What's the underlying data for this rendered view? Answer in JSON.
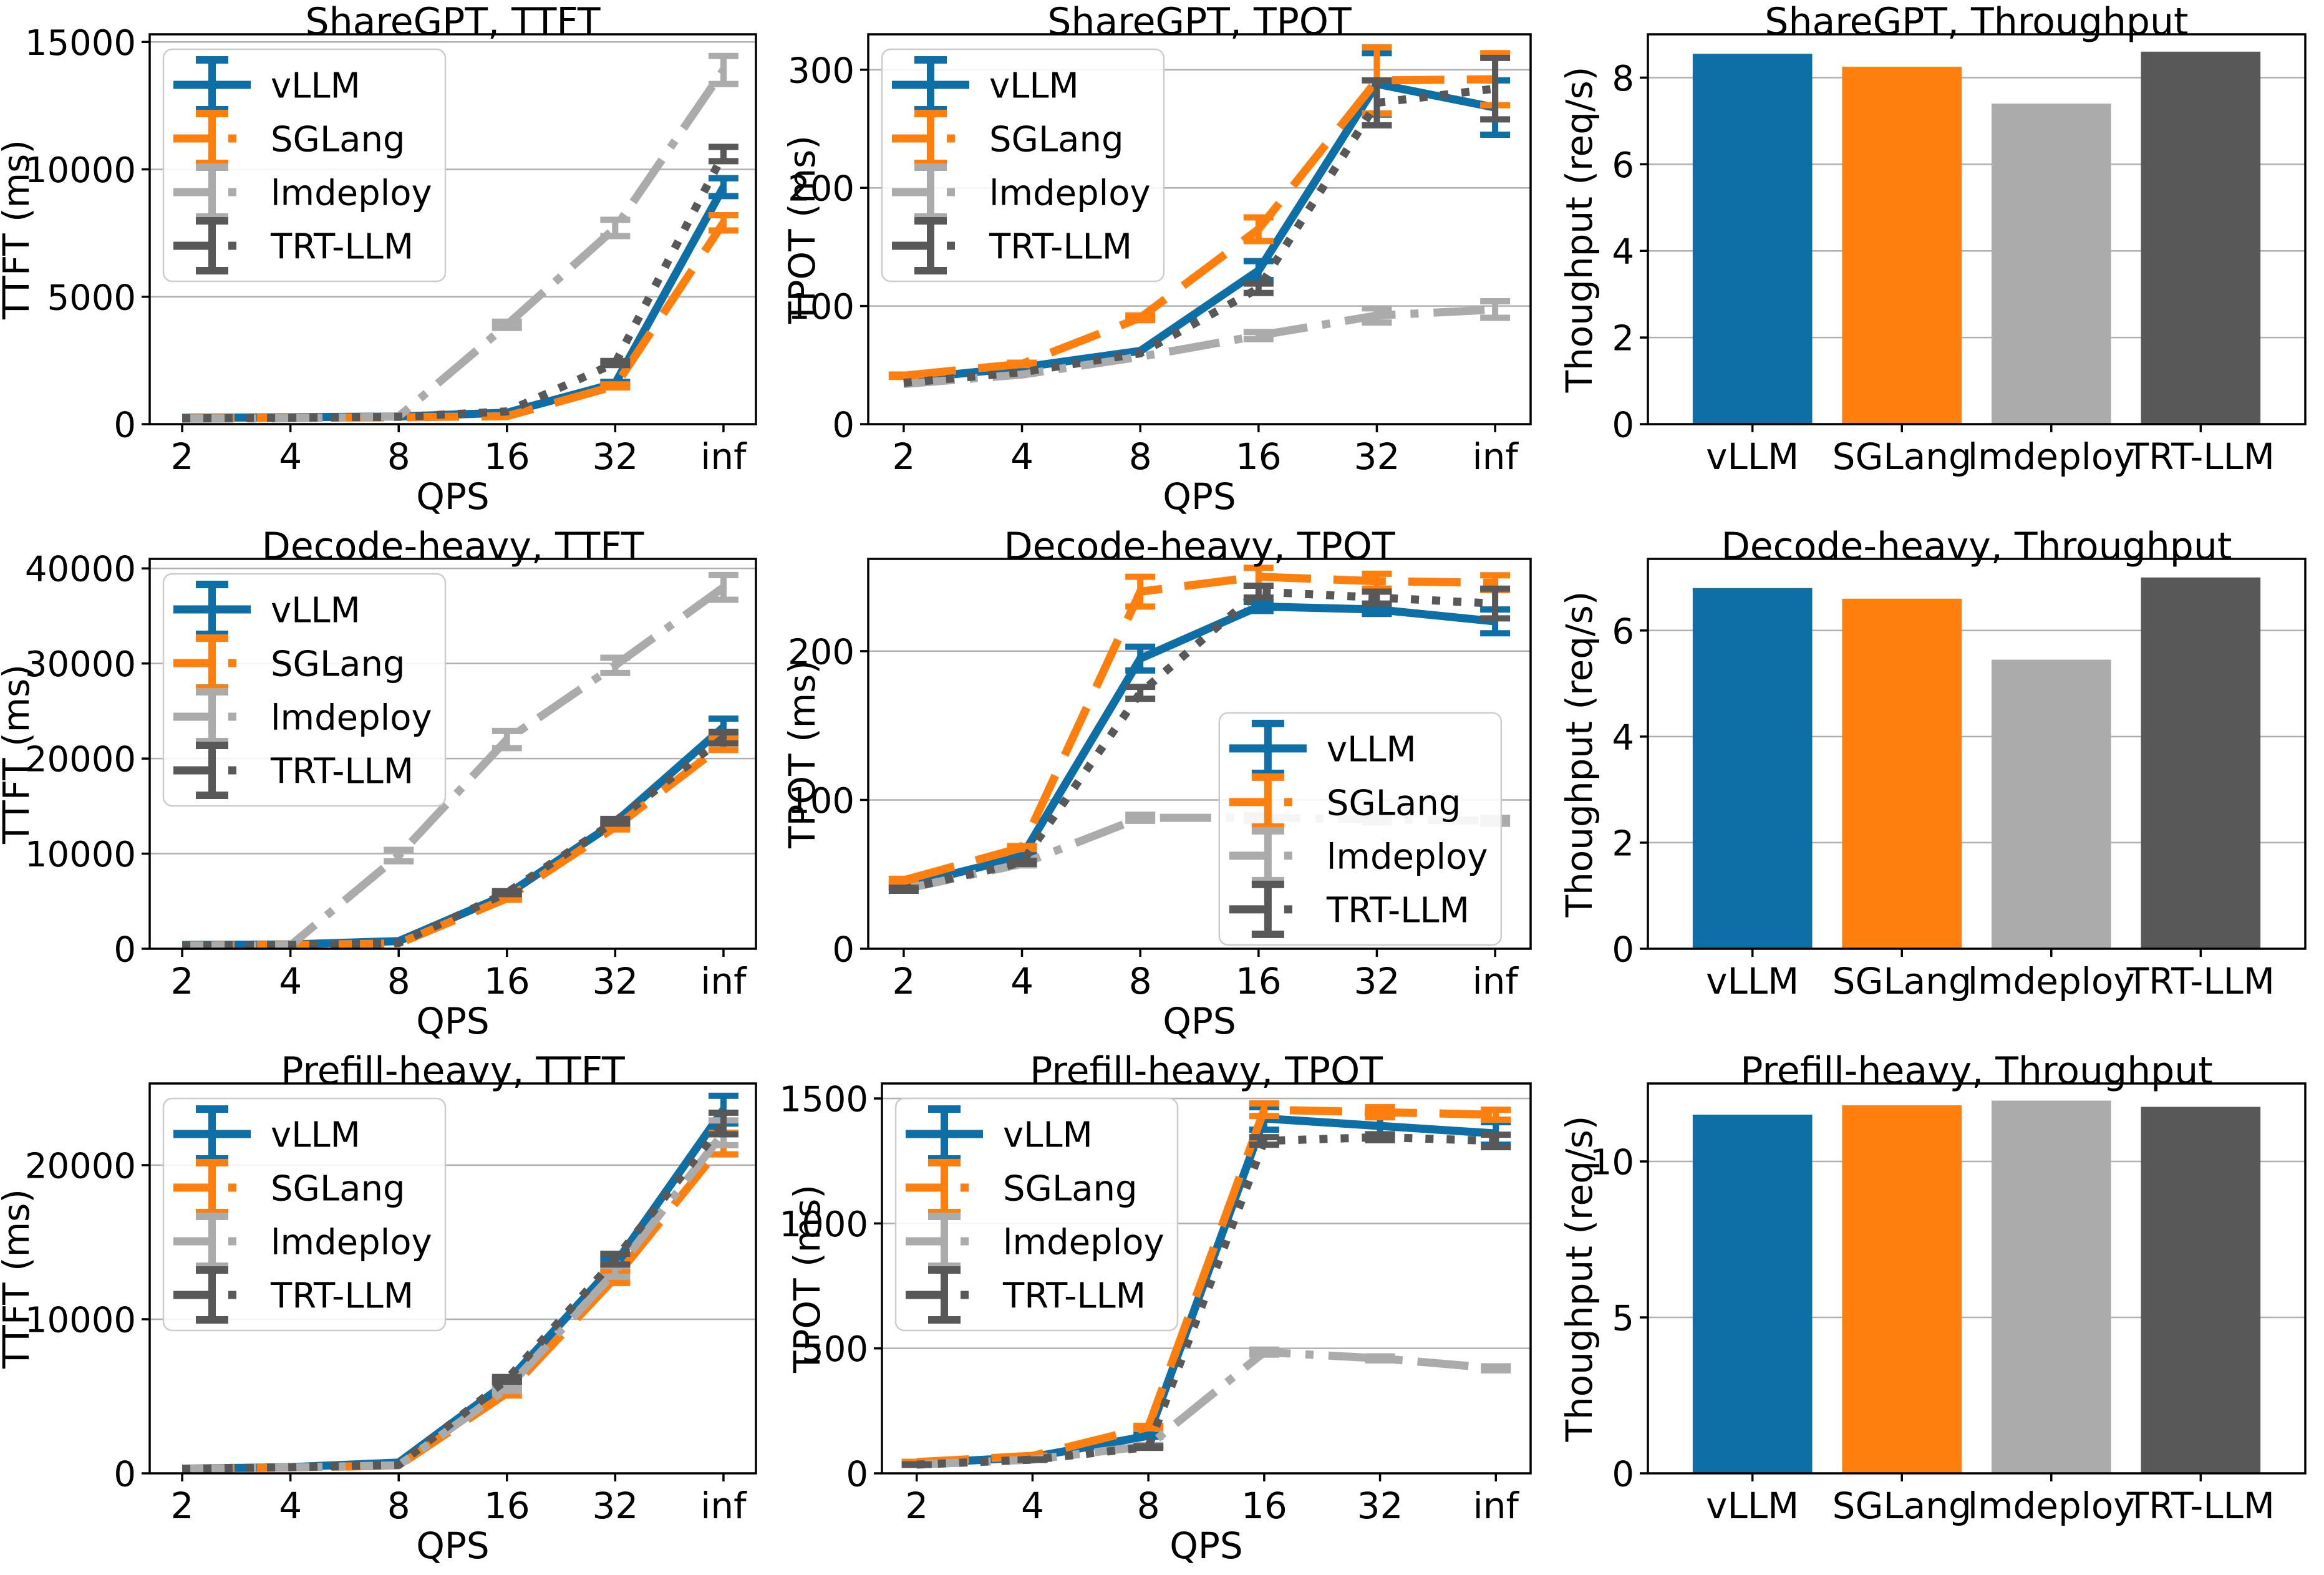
{
  "figure": {
    "background": "#ffffff",
    "frameworks": [
      "vLLM",
      "SGLang",
      "lmdeploy",
      "TRT-LLM"
    ],
    "colors": {
      "vLLM": "#0d6fa6",
      "SGLang": "#ff7f0e",
      "lmdeploy": "#ababab",
      "TRT-LLM": "#585858"
    },
    "linestyles": {
      "vLLM": "solid",
      "SGLang": "dashed",
      "lmdeploy": "dashdot",
      "TRT-LLM": "dotted"
    },
    "grid_color": "#b0b0b0",
    "x_axis_label": "QPS"
  },
  "chart_data": [
    {
      "type": "line",
      "title": "ShareGPT, TTFT",
      "xlabel": "QPS",
      "ylabel": "TTFT (ms)",
      "x_categories": [
        "2",
        "4",
        "8",
        "16",
        "32",
        "inf"
      ],
      "yticks": [
        0,
        5000,
        10000,
        15000
      ],
      "ylim": [
        0,
        15300
      ],
      "grid": true,
      "legend_pos": "upper-left",
      "series": [
        {
          "name": "vLLM",
          "values": [
            250,
            270,
            300,
            450,
            1600,
            9300
          ],
          "err": [
            0,
            0,
            0,
            0,
            60,
            350
          ]
        },
        {
          "name": "SGLang",
          "values": [
            230,
            250,
            270,
            310,
            1500,
            7900
          ],
          "err": [
            0,
            0,
            0,
            0,
            60,
            300
          ]
        },
        {
          "name": "lmdeploy",
          "values": [
            210,
            230,
            300,
            3900,
            7700,
            13900
          ],
          "err": [
            0,
            0,
            0,
            120,
            320,
            550
          ]
        },
        {
          "name": "TRT-LLM",
          "values": [
            230,
            250,
            290,
            500,
            2400,
            10600
          ],
          "err": [
            0,
            0,
            0,
            0,
            80,
            280
          ]
        }
      ]
    },
    {
      "type": "line",
      "title": "ShareGPT, TPOT",
      "xlabel": "QPS",
      "ylabel": "TPOT (ms)",
      "x_categories": [
        "2",
        "4",
        "8",
        "16",
        "32",
        "inf"
      ],
      "yticks": [
        0,
        100,
        200,
        300
      ],
      "ylim": [
        0,
        330
      ],
      "grid": true,
      "legend_pos": "upper-left",
      "series": [
        {
          "name": "vLLM",
          "values": [
            38,
            48,
            62,
            130,
            288,
            268
          ],
          "err": [
            0,
            0,
            0,
            8,
            26,
            23
          ]
        },
        {
          "name": "SGLang",
          "values": [
            41,
            51,
            90,
            165,
            291,
            292
          ],
          "err": [
            1,
            1,
            2,
            10,
            28,
            22
          ]
        },
        {
          "name": "lmdeploy",
          "values": [
            34,
            42,
            57,
            75,
            92,
            97
          ],
          "err": [
            0,
            0,
            0,
            3,
            6,
            7
          ]
        },
        {
          "name": "TRT-LLM",
          "values": [
            35,
            44,
            60,
            115,
            272,
            284
          ],
          "err": [
            0,
            0,
            0,
            4,
            19,
            26
          ]
        }
      ]
    },
    {
      "type": "bar",
      "title": "ShareGPT, Throughput",
      "xlabel": "",
      "ylabel": "Thoughput (req/s)",
      "categories": [
        "vLLM",
        "SGLang",
        "lmdeploy",
        "TRT-LLM"
      ],
      "values": [
        8.55,
        8.25,
        7.4,
        8.6
      ],
      "yticks": [
        0,
        2,
        4,
        6,
        8
      ],
      "ylim": [
        0,
        9.0
      ],
      "grid": true
    },
    {
      "type": "line",
      "title": "Decode-heavy, TTFT",
      "xlabel": "QPS",
      "ylabel": "TTFT (ms)",
      "x_categories": [
        "2",
        "4",
        "8",
        "16",
        "32",
        "inf"
      ],
      "yticks": [
        0,
        10000,
        20000,
        30000,
        40000
      ],
      "ylim": [
        0,
        41000
      ],
      "grid": true,
      "legend_pos": "upper-left",
      "series": [
        {
          "name": "vLLM",
          "values": [
            400,
            450,
            800,
            5700,
            13300,
            23300
          ],
          "err": [
            0,
            0,
            0,
            150,
            250,
            900
          ]
        },
        {
          "name": "SGLang",
          "values": [
            350,
            400,
            550,
            5300,
            12800,
            21500
          ],
          "err": [
            0,
            0,
            0,
            150,
            250,
            600
          ]
        },
        {
          "name": "lmdeploy",
          "values": [
            300,
            350,
            9800,
            22000,
            29800,
            38000
          ],
          "err": [
            0,
            0,
            600,
            900,
            800,
            1300
          ]
        },
        {
          "name": "TRT-LLM",
          "values": [
            350,
            400,
            600,
            5900,
            13400,
            22200
          ],
          "err": [
            0,
            0,
            0,
            150,
            250,
            600
          ]
        }
      ]
    },
    {
      "type": "line",
      "title": "Decode-heavy, TPOT",
      "xlabel": "QPS",
      "ylabel": "TPOT (ms)",
      "x_categories": [
        "2",
        "4",
        "8",
        "16",
        "32",
        "inf"
      ],
      "yticks": [
        0,
        100,
        200
      ],
      "ylim": [
        0,
        262
      ],
      "grid": true,
      "legend_pos": "center-right",
      "series": [
        {
          "name": "vLLM",
          "values": [
            42,
            62,
            195,
            230,
            228,
            220
          ],
          "err": [
            1,
            1,
            8,
            3,
            3,
            8
          ]
        },
        {
          "name": "SGLang",
          "values": [
            46,
            68,
            240,
            250,
            247,
            246
          ],
          "err": [
            1,
            1,
            10,
            6,
            5,
            5
          ]
        },
        {
          "name": "lmdeploy",
          "values": [
            40,
            57,
            88,
            88,
            87,
            86
          ],
          "err": [
            1,
            1,
            2,
            2,
            2,
            2
          ]
        },
        {
          "name": "TRT-LLM",
          "values": [
            40,
            58,
            172,
            240,
            236,
            232
          ],
          "err": [
            1,
            1,
            4,
            4,
            4,
            10
          ]
        }
      ]
    },
    {
      "type": "bar",
      "title": "Decode-heavy, Throughput",
      "xlabel": "",
      "ylabel": "Thoughput (req/s)",
      "categories": [
        "vLLM",
        "SGLang",
        "lmdeploy",
        "TRT-LLM"
      ],
      "values": [
        6.8,
        6.6,
        5.45,
        7.0
      ],
      "yticks": [
        0,
        2,
        4,
        6
      ],
      "ylim": [
        0,
        7.35
      ],
      "grid": true
    },
    {
      "type": "line",
      "title": "Prefill-heavy, TTFT",
      "xlabel": "QPS",
      "ylabel": "TTFT (ms)",
      "x_categories": [
        "2",
        "4",
        "8",
        "16",
        "32",
        "inf"
      ],
      "yticks": [
        0,
        10000,
        20000
      ],
      "ylim": [
        0,
        25300
      ],
      "grid": true,
      "legend_pos": "upper-left",
      "series": [
        {
          "name": "vLLM",
          "values": [
            300,
            400,
            700,
            5900,
            13600,
            23600
          ],
          "err": [
            0,
            0,
            0,
            150,
            350,
            900
          ]
        },
        {
          "name": "SGLang",
          "values": [
            280,
            380,
            500,
            5200,
            12700,
            21400
          ],
          "err": [
            0,
            0,
            0,
            150,
            350,
            700
          ]
        },
        {
          "name": "lmdeploy",
          "values": [
            280,
            380,
            520,
            5500,
            13100,
            22100
          ],
          "err": [
            0,
            0,
            0,
            150,
            350,
            800
          ]
        },
        {
          "name": "TRT-LLM",
          "values": [
            300,
            400,
            550,
            6100,
            13900,
            22700
          ],
          "err": [
            0,
            0,
            0,
            150,
            350,
            700
          ]
        }
      ]
    },
    {
      "type": "line",
      "title": "Prefill-heavy, TPOT",
      "xlabel": "QPS",
      "ylabel": "TPOT (ms)",
      "x_categories": [
        "2",
        "4",
        "8",
        "16",
        "32",
        "inf"
      ],
      "yticks": [
        0,
        500,
        1000,
        1500
      ],
      "ylim": [
        0,
        1560
      ],
      "grid": true,
      "legend_pos": "upper-left",
      "series": [
        {
          "name": "vLLM",
          "values": [
            40,
            65,
            150,
            1420,
            1390,
            1360
          ],
          "err": [
            1,
            1,
            4,
            45,
            35,
            45
          ]
        },
        {
          "name": "SGLang",
          "values": [
            45,
            70,
            185,
            1455,
            1445,
            1435
          ],
          "err": [
            1,
            1,
            5,
            25,
            20,
            20
          ]
        },
        {
          "name": "lmdeploy",
          "values": [
            35,
            55,
            110,
            485,
            460,
            420
          ],
          "err": [
            1,
            1,
            3,
            10,
            8,
            8
          ]
        },
        {
          "name": "TRT-LLM",
          "values": [
            35,
            55,
            105,
            1330,
            1345,
            1330
          ],
          "err": [
            1,
            1,
            3,
            15,
            12,
            25
          ]
        }
      ]
    },
    {
      "type": "bar",
      "title": "Prefill-heavy, Throughput",
      "xlabel": "",
      "ylabel": "Thoughput (req/s)",
      "categories": [
        "vLLM",
        "SGLang",
        "lmdeploy",
        "TRT-LLM"
      ],
      "values": [
        11.5,
        11.8,
        11.95,
        11.75
      ],
      "yticks": [
        0,
        5,
        10
      ],
      "ylim": [
        0,
        12.5
      ],
      "grid": true
    }
  ]
}
